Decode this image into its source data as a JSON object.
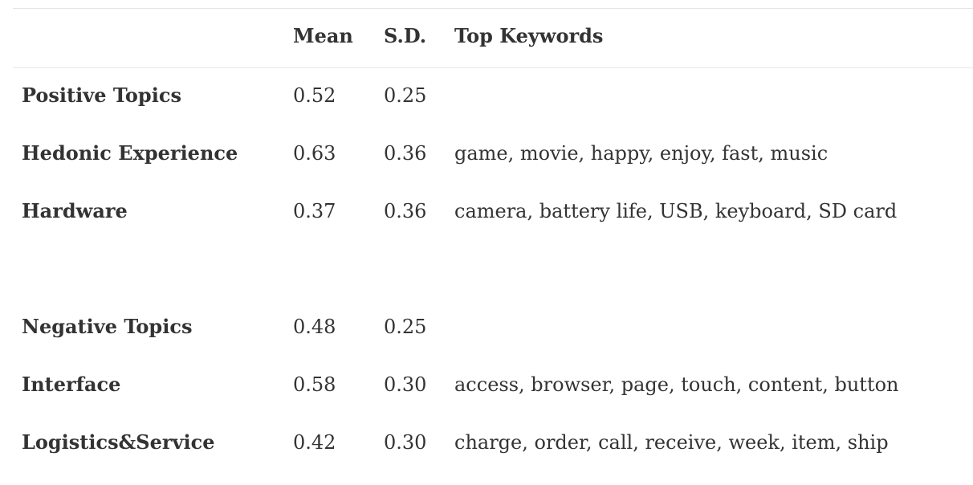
{
  "table": {
    "headers": {
      "label": "",
      "mean": "Mean",
      "sd": "S.D.",
      "keywords": "Top Keywords"
    },
    "rows": [
      {
        "label": "Positive Topics",
        "mean": "0.52",
        "sd": "0.25",
        "keywords": ""
      },
      {
        "label": "Hedonic Experience",
        "mean": "0.63",
        "sd": "0.36",
        "keywords": "game, movie, happy, enjoy, fast, music"
      },
      {
        "label": "Hardware",
        "mean": "0.37",
        "sd": "0.36",
        "keywords": "camera, battery life, USB, keyboard, SD card"
      },
      {
        "label": "Negative Topics",
        "mean": "0.48",
        "sd": "0.25",
        "keywords": ""
      },
      {
        "label": "Interface",
        "mean": "0.58",
        "sd": "0.30",
        "keywords": "access, browser, page, touch, content, button"
      },
      {
        "label": "Logistics&Service",
        "mean": "0.42",
        "sd": "0.30",
        "keywords": "charge, order, call, receive, week, item, ship"
      }
    ]
  }
}
